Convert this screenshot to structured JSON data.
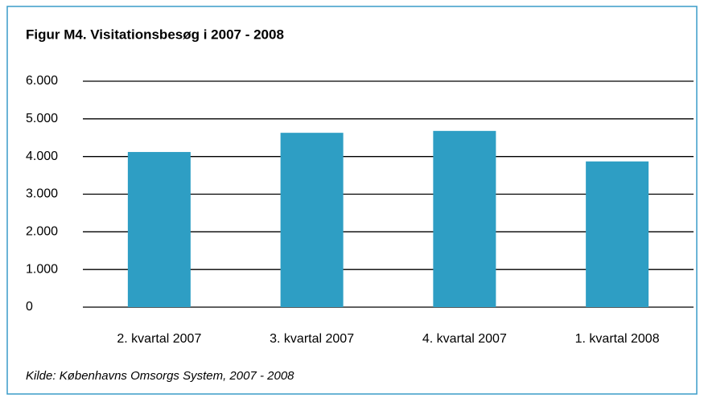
{
  "chart_data": {
    "type": "bar",
    "title": "Figur M4. Visitationsbesøg i 2007 - 2008",
    "categories": [
      "2. kvartal 2007",
      "3. kvartal 2007",
      "4. kvartal 2007",
      "1. kvartal 2008"
    ],
    "values": [
      4120,
      4630,
      4680,
      3870
    ],
    "color": "#2e9ec4",
    "ylim": [
      0,
      6000
    ],
    "yticks": [
      0,
      {
        "value": 1000,
        "label": "1.000"
      },
      {
        "value": 2000,
        "label": "2.000"
      },
      {
        "value": 3000,
        "label": "3.000"
      },
      {
        "value": 4000,
        "label": "4.000"
      },
      {
        "value": 5000,
        "label": "5.000"
      },
      {
        "value": 6000,
        "label": "6.000"
      }
    ],
    "grid": true,
    "source": "Kilde: Københavns Omsorgs System, 2007 - 2008"
  }
}
